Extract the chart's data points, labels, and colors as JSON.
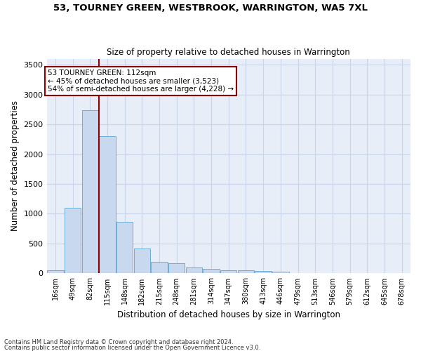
{
  "title1": "53, TOURNEY GREEN, WESTBROOK, WARRINGTON, WA5 7XL",
  "title2": "Size of property relative to detached houses in Warrington",
  "xlabel": "Distribution of detached houses by size in Warrington",
  "ylabel": "Number of detached properties",
  "categories": [
    "16sqm",
    "49sqm",
    "82sqm",
    "115sqm",
    "148sqm",
    "182sqm",
    "215sqm",
    "248sqm",
    "281sqm",
    "314sqm",
    "347sqm",
    "380sqm",
    "413sqm",
    "446sqm",
    "479sqm",
    "513sqm",
    "546sqm",
    "579sqm",
    "612sqm",
    "645sqm",
    "678sqm"
  ],
  "values": [
    55,
    1100,
    2730,
    2295,
    870,
    420,
    190,
    165,
    95,
    70,
    50,
    50,
    35,
    25,
    10,
    0,
    0,
    0,
    0,
    0,
    0
  ],
  "bar_color": "#c8d8ef",
  "bar_edge_color": "#6baed6",
  "vline_color": "#8b0000",
  "annotation_title": "53 TOURNEY GREEN: 112sqm",
  "annotation_line1": "← 45% of detached houses are smaller (3,523)",
  "annotation_line2": "54% of semi-detached houses are larger (4,228) →",
  "annotation_box_edgecolor": "#8b0000",
  "ylim": [
    0,
    3600
  ],
  "yticks": [
    0,
    500,
    1000,
    1500,
    2000,
    2500,
    3000,
    3500
  ],
  "grid_color": "#c8d4e8",
  "bg_color": "#e8eef8",
  "footnote1": "Contains HM Land Registry data © Crown copyright and database right 2024.",
  "footnote2": "Contains public sector information licensed under the Open Government Licence v3.0."
}
